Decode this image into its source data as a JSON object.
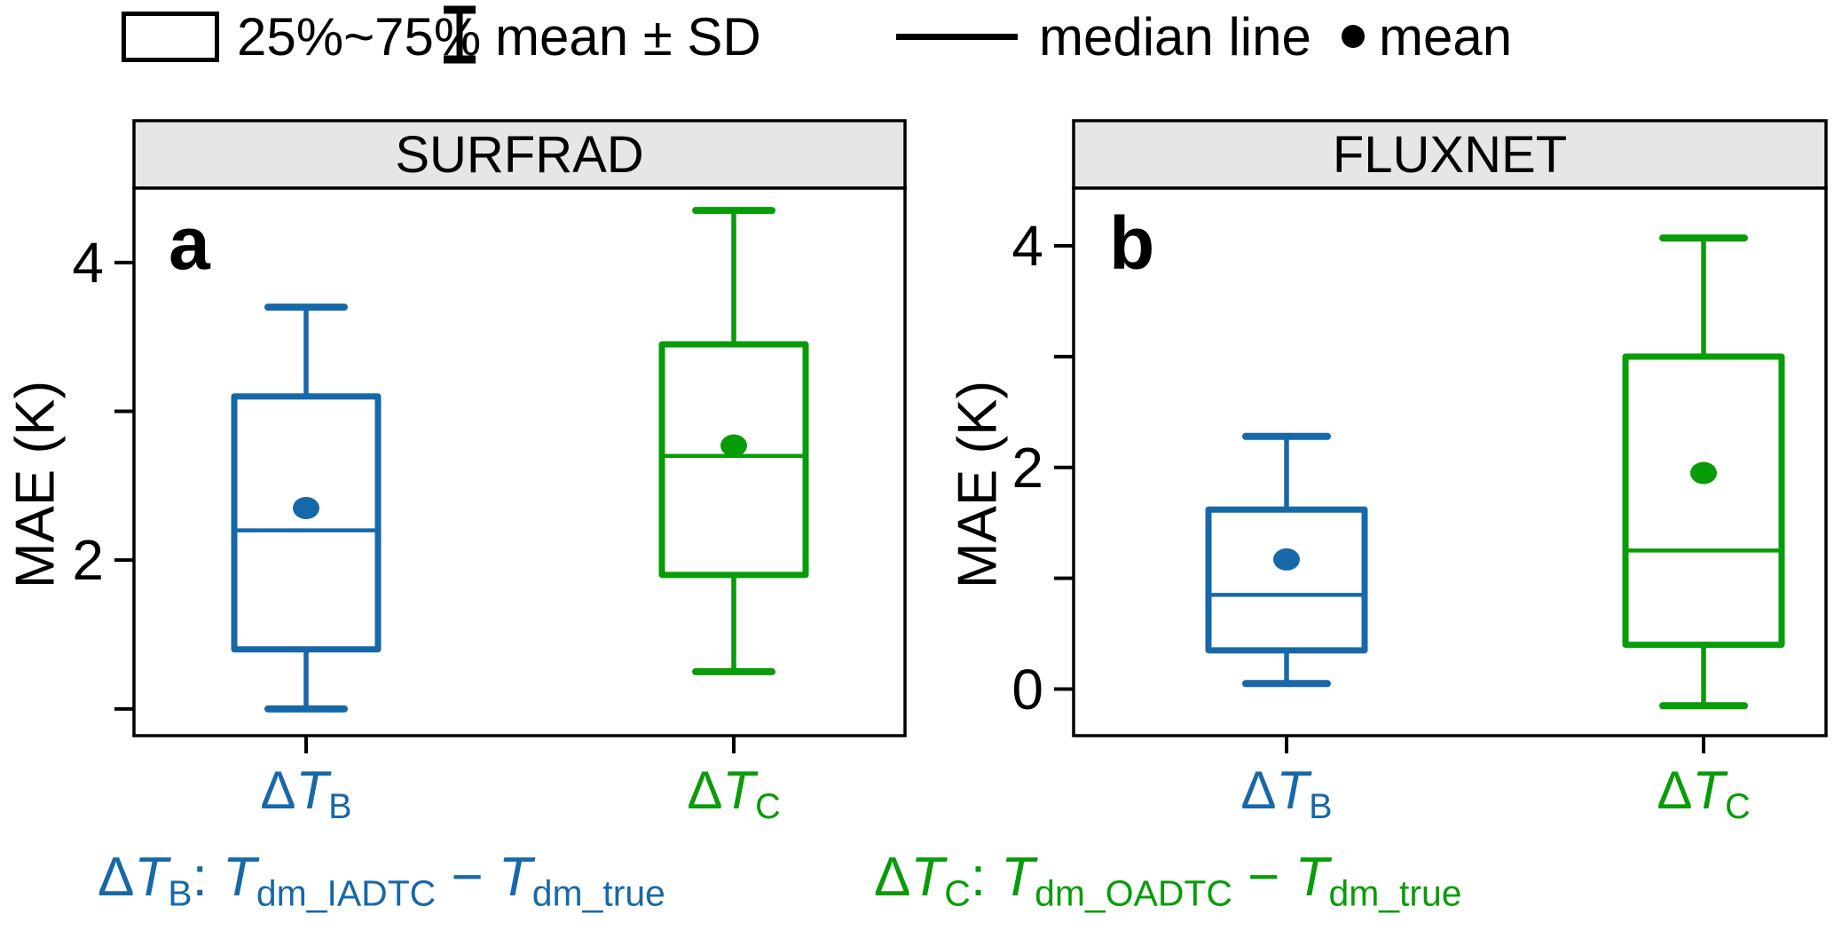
{
  "colors": {
    "blue": "#1768A8",
    "green": "#089C08",
    "header_fill": "#E6E6E6",
    "frame": "#000000"
  },
  "legend": {
    "items": [
      {
        "icon": "box-range-icon",
        "label": "25%~75%"
      },
      {
        "icon": "error-bar-icon",
        "label": "mean ± SD"
      },
      {
        "icon": "median-line-icon",
        "label": "median line"
      },
      {
        "icon": "mean-dot-icon",
        "label": "mean"
      }
    ]
  },
  "y_axis_title": "MAE (K)",
  "chart_data": {
    "type": "box",
    "ylabel": "MAE (K)",
    "panels": [
      {
        "id": "a",
        "title": "SURFRAD",
        "panel_label": "a",
        "ylim": [
          0.82,
          4.5
        ],
        "y_ticks": [
          {
            "v": 4,
            "label": "4"
          },
          {
            "v": 3,
            "label": ""
          },
          {
            "v": 2,
            "label": "2"
          },
          {
            "v": 1,
            "label": ""
          }
        ],
        "series": [
          {
            "name": "ΔT_B",
            "color": "blue",
            "label_tokens": [
              {
                "t": "Δ"
              },
              {
                "t": "T",
                "i": true,
                "sub": "B"
              }
            ],
            "whisker_low": 1.0,
            "q1": 1.4,
            "median": 2.2,
            "mean": 2.35,
            "q3": 3.1,
            "whisker_high": 3.7
          },
          {
            "name": "ΔT_C",
            "color": "green",
            "label_tokens": [
              {
                "t": "Δ"
              },
              {
                "t": "T",
                "i": true,
                "sub": "C"
              }
            ],
            "whisker_low": 1.25,
            "q1": 1.9,
            "median": 2.7,
            "mean": 2.77,
            "q3": 3.45,
            "whisker_high": 4.35
          }
        ]
      },
      {
        "id": "b",
        "title": "FLUXNET",
        "panel_label": "b",
        "ylim": [
          -0.42,
          4.52
        ],
        "y_ticks": [
          {
            "v": 4,
            "label": "4"
          },
          {
            "v": 3,
            "label": ""
          },
          {
            "v": 2,
            "label": "2"
          },
          {
            "v": 1,
            "label": ""
          },
          {
            "v": 0,
            "label": "0"
          }
        ],
        "series": [
          {
            "name": "ΔT_B",
            "color": "blue",
            "label_tokens": [
              {
                "t": "Δ"
              },
              {
                "t": "T",
                "i": true,
                "sub": "B"
              }
            ],
            "whisker_low": 0.05,
            "q1": 0.35,
            "median": 0.85,
            "mean": 1.17,
            "q3": 1.62,
            "whisker_high": 2.28
          },
          {
            "name": "ΔT_C",
            "color": "green",
            "label_tokens": [
              {
                "t": "Δ"
              },
              {
                "t": "T",
                "i": true,
                "sub": "C"
              }
            ],
            "whisker_low": -0.15,
            "q1": 0.4,
            "median": 1.25,
            "mean": 1.95,
            "q3": 3.0,
            "whisker_high": 4.07
          }
        ]
      }
    ]
  },
  "footnotes": [
    {
      "color": "blue",
      "tokens": [
        {
          "t": "Δ"
        },
        {
          "t": "T",
          "i": true,
          "sub": "B"
        },
        {
          "t": ": "
        },
        {
          "t": "T",
          "i": true,
          "sub": "dm_IADTC"
        },
        {
          "t": " − "
        },
        {
          "t": "T",
          "i": true,
          "sub": "dm_true"
        }
      ]
    },
    {
      "color": "green",
      "tokens": [
        {
          "t": "Δ"
        },
        {
          "t": "T",
          "i": true,
          "sub": "C"
        },
        {
          "t": ": "
        },
        {
          "t": "T",
          "i": true,
          "sub": "dm_OADTC"
        },
        {
          "t": " − "
        },
        {
          "t": "T",
          "i": true,
          "sub": "dm_true"
        }
      ]
    }
  ]
}
